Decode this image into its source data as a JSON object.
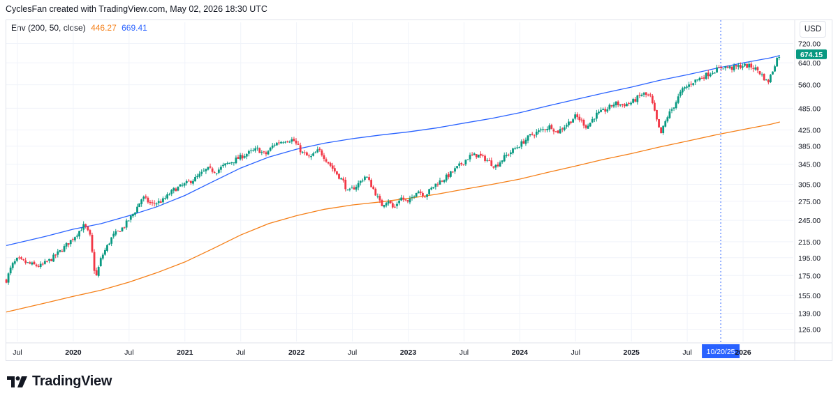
{
  "header": {
    "caption": "CyclesFan created with TradingView.com, May 02, 2026 18:30 UTC"
  },
  "indicator": {
    "name": "Env (200, 50, close)",
    "lower_value": "446.27",
    "upper_value": "669.41",
    "lower_color": "#f57f17",
    "upper_color": "#2962ff"
  },
  "toolbar": {
    "currency_label": "USD"
  },
  "brand": {
    "name": "TradingView",
    "logo_icon": "tradingview-logo-icon"
  },
  "chart_data": {
    "type": "candlestick",
    "price_scale": "log",
    "ylim": [
      117,
      740
    ],
    "y_ticks": [
      "720.00",
      "640.00",
      "560.00",
      "485.00",
      "425.00",
      "385.00",
      "345.00",
      "305.00",
      "275.00",
      "245.00",
      "215.00",
      "195.00",
      "175.00",
      "155.00",
      "139.00",
      "126.00"
    ],
    "y_tick_values": [
      720,
      640,
      560,
      485,
      425,
      385,
      345,
      305,
      275,
      245,
      215,
      195,
      175,
      155,
      139,
      126
    ],
    "xlim": [
      2019.4,
      2026.45
    ],
    "x_ticks": [
      {
        "label": "Jul",
        "t": 2019.5
      },
      {
        "label": "2020",
        "t": 2020.0
      },
      {
        "label": "Jul",
        "t": 2020.5
      },
      {
        "label": "2021",
        "t": 2021.0
      },
      {
        "label": "Jul",
        "t": 2021.5
      },
      {
        "label": "2022",
        "t": 2022.0
      },
      {
        "label": "Jul",
        "t": 2022.5
      },
      {
        "label": "2023",
        "t": 2023.0
      },
      {
        "label": "Jul",
        "t": 2023.5
      },
      {
        "label": "2024",
        "t": 2024.0
      },
      {
        "label": "Jul",
        "t": 2024.5
      },
      {
        "label": "2025",
        "t": 2025.0
      },
      {
        "label": "Jul",
        "t": 2025.5
      },
      {
        "label": "2026",
        "t": 2026.0
      }
    ],
    "last_price": "674.15",
    "last_price_value": 674.15,
    "crosshair": {
      "t": 2025.8,
      "label": "10/20/25"
    },
    "colors": {
      "up": "#089981",
      "down": "#f23645",
      "upper_band": "#2962ff",
      "lower_band": "#f57f17",
      "crosshair": "#2962ff"
    },
    "series": [
      {
        "name": "Upper envelope",
        "band": "upper",
        "points": [
          [
            2019.4,
            210
          ],
          [
            2019.75,
            222
          ],
          [
            2020.0,
            232
          ],
          [
            2020.25,
            240
          ],
          [
            2020.5,
            252
          ],
          [
            2020.75,
            266
          ],
          [
            2021.0,
            285
          ],
          [
            2021.25,
            310
          ],
          [
            2021.5,
            337
          ],
          [
            2021.75,
            360
          ],
          [
            2022.0,
            378
          ],
          [
            2022.25,
            392
          ],
          [
            2022.5,
            403
          ],
          [
            2022.75,
            412
          ],
          [
            2023.0,
            420
          ],
          [
            2023.25,
            430
          ],
          [
            2023.5,
            443
          ],
          [
            2023.75,
            456
          ],
          [
            2024.0,
            472
          ],
          [
            2024.25,
            492
          ],
          [
            2024.5,
            512
          ],
          [
            2024.75,
            532
          ],
          [
            2025.0,
            552
          ],
          [
            2025.25,
            575
          ],
          [
            2025.5,
            595
          ],
          [
            2025.75,
            618
          ],
          [
            2026.0,
            640
          ],
          [
            2026.25,
            660
          ],
          [
            2026.33,
            669.41
          ]
        ]
      },
      {
        "name": "Lower envelope",
        "band": "lower",
        "points": [
          [
            2019.4,
            140
          ],
          [
            2019.75,
            148
          ],
          [
            2020.0,
            154
          ],
          [
            2020.25,
            160
          ],
          [
            2020.5,
            168
          ],
          [
            2020.75,
            178
          ],
          [
            2021.0,
            190
          ],
          [
            2021.25,
            206
          ],
          [
            2021.5,
            224
          ],
          [
            2021.75,
            240
          ],
          [
            2022.0,
            252
          ],
          [
            2022.25,
            262
          ],
          [
            2022.5,
            269
          ],
          [
            2022.75,
            274
          ],
          [
            2023.0,
            280
          ],
          [
            2023.25,
            287
          ],
          [
            2023.5,
            296
          ],
          [
            2023.75,
            305
          ],
          [
            2024.0,
            315
          ],
          [
            2024.25,
            328
          ],
          [
            2024.5,
            341
          ],
          [
            2024.75,
            355
          ],
          [
            2025.0,
            368
          ],
          [
            2025.25,
            383
          ],
          [
            2025.5,
            397
          ],
          [
            2025.75,
            412
          ],
          [
            2026.0,
            426
          ],
          [
            2026.25,
            440
          ],
          [
            2026.33,
            446.27
          ]
        ]
      },
      {
        "name": "Price",
        "points": [
          [
            2019.4,
            170
          ],
          [
            2019.45,
            186
          ],
          [
            2019.5,
            193
          ],
          [
            2019.6,
            188
          ],
          [
            2019.7,
            185
          ],
          [
            2019.8,
            193
          ],
          [
            2019.9,
            205
          ],
          [
            2020.0,
            220
          ],
          [
            2020.1,
            238
          ],
          [
            2020.15,
            222
          ],
          [
            2020.2,
            171
          ],
          [
            2020.25,
            195
          ],
          [
            2020.35,
            222
          ],
          [
            2020.45,
            235
          ],
          [
            2020.55,
            258
          ],
          [
            2020.62,
            282
          ],
          [
            2020.7,
            270
          ],
          [
            2020.8,
            276
          ],
          [
            2020.9,
            295
          ],
          [
            2021.0,
            305
          ],
          [
            2021.1,
            317
          ],
          [
            2021.2,
            335
          ],
          [
            2021.28,
            330
          ],
          [
            2021.35,
            342
          ],
          [
            2021.45,
            354
          ],
          [
            2021.55,
            367
          ],
          [
            2021.65,
            378
          ],
          [
            2021.72,
            365
          ],
          [
            2021.8,
            390
          ],
          [
            2021.9,
            400
          ],
          [
            2021.97,
            400
          ],
          [
            2022.05,
            370
          ],
          [
            2022.12,
            358
          ],
          [
            2022.2,
            376
          ],
          [
            2022.25,
            360
          ],
          [
            2022.35,
            328
          ],
          [
            2022.42,
            310
          ],
          [
            2022.46,
            290
          ],
          [
            2022.55,
            305
          ],
          [
            2022.62,
            322
          ],
          [
            2022.7,
            292
          ],
          [
            2022.76,
            268
          ],
          [
            2022.82,
            278
          ],
          [
            2022.87,
            262
          ],
          [
            2022.93,
            282
          ],
          [
            2023.0,
            272
          ],
          [
            2023.08,
            295
          ],
          [
            2023.15,
            285
          ],
          [
            2023.25,
            306
          ],
          [
            2023.35,
            320
          ],
          [
            2023.45,
            340
          ],
          [
            2023.55,
            362
          ],
          [
            2023.62,
            365
          ],
          [
            2023.7,
            355
          ],
          [
            2023.78,
            340
          ],
          [
            2023.87,
            362
          ],
          [
            2024.0,
            388
          ],
          [
            2024.1,
            412
          ],
          [
            2024.2,
            425
          ],
          [
            2024.28,
            436
          ],
          [
            2024.33,
            418
          ],
          [
            2024.42,
            440
          ],
          [
            2024.5,
            462
          ],
          [
            2024.55,
            450
          ],
          [
            2024.6,
            432
          ],
          [
            2024.68,
            466
          ],
          [
            2024.77,
            480
          ],
          [
            2024.85,
            500
          ],
          [
            2024.92,
            495
          ],
          [
            2025.0,
            502
          ],
          [
            2025.1,
            530
          ],
          [
            2025.17,
            520
          ],
          [
            2025.22,
            458
          ],
          [
            2025.26,
            412
          ],
          [
            2025.32,
            460
          ],
          [
            2025.38,
            492
          ],
          [
            2025.45,
            540
          ],
          [
            2025.55,
            570
          ],
          [
            2025.65,
            590
          ],
          [
            2025.75,
            612
          ],
          [
            2025.82,
            625
          ],
          [
            2025.9,
            620
          ],
          [
            2026.0,
            630
          ],
          [
            2026.08,
            625
          ],
          [
            2026.13,
            612
          ],
          [
            2026.18,
            588
          ],
          [
            2026.22,
            566
          ],
          [
            2026.26,
            605
          ],
          [
            2026.3,
            655
          ],
          [
            2026.33,
            674.15
          ]
        ]
      }
    ]
  }
}
